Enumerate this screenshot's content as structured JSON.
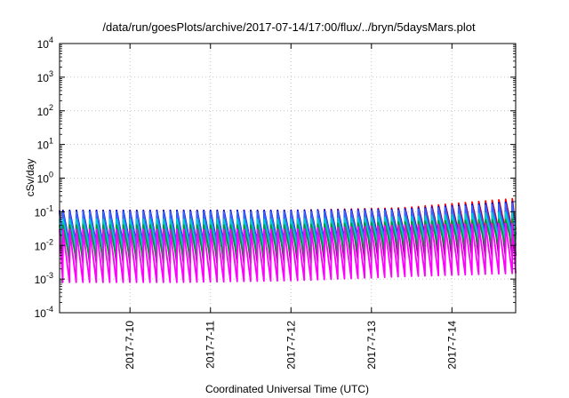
{
  "chart_data": {
    "type": "line",
    "title": "/data/run/goesPlots/archive/2017-07-14/17:00/flux/../bryn/5daysMars.plot",
    "xlabel": "Coordinated Universal Time (UTC)",
    "ylabel": "cSv/day",
    "y_scale": "log",
    "ylim": [
      0.0001,
      10000
    ],
    "y_ticks": [
      {
        "base": "10",
        "exp": "-4"
      },
      {
        "base": "10",
        "exp": "-3"
      },
      {
        "base": "10",
        "exp": "-2"
      },
      {
        "base": "10",
        "exp": "-1"
      },
      {
        "base": "10",
        "exp": "0"
      },
      {
        "base": "10",
        "exp": "1"
      },
      {
        "base": "10",
        "exp": "2"
      },
      {
        "base": "10",
        "exp": "3"
      },
      {
        "base": "10",
        "exp": "4"
      }
    ],
    "xlim": [
      "2017-07-09T03:00",
      "2017-07-14T19:00"
    ],
    "x_ticks": [
      "2017-7-10",
      "2017-7-11",
      "2017-7-12",
      "2017-7-13",
      "2017-7-14"
    ],
    "grid": true,
    "cycle_hours": 2,
    "series": [
      {
        "color": "#ff0000",
        "peak": [
          0.11,
          0.11,
          0.11,
          0.13,
          0.25
        ],
        "trough": [
          0.011,
          0.011,
          0.012,
          0.02,
          0.03
        ]
      },
      {
        "color": "#990099",
        "peak": [
          0.1,
          0.1,
          0.1,
          0.11,
          0.2
        ],
        "trough": [
          0.003,
          0.003,
          0.003,
          0.004,
          0.005
        ]
      },
      {
        "color": "#0000cc",
        "peak": [
          0.11,
          0.11,
          0.11,
          0.12,
          0.2
        ],
        "trough": [
          0.011,
          0.011,
          0.012,
          0.018,
          0.022
        ]
      },
      {
        "color": "#3366ff",
        "peak": [
          0.1,
          0.1,
          0.1,
          0.11,
          0.18
        ],
        "trough": [
          0.01,
          0.01,
          0.011,
          0.016,
          0.02
        ]
      },
      {
        "color": "#00cccc",
        "peak": [
          0.06,
          0.06,
          0.06,
          0.07,
          0.1
        ],
        "trough": [
          0.007,
          0.007,
          0.008,
          0.012,
          0.016
        ]
      },
      {
        "color": "#009933",
        "peak": [
          0.04,
          0.04,
          0.04,
          0.05,
          0.06
        ],
        "trough": [
          0.004,
          0.004,
          0.005,
          0.008,
          0.01
        ]
      },
      {
        "color": "#ff00ff",
        "peak": [
          0.03,
          0.03,
          0.03,
          0.04,
          0.045
        ],
        "trough": [
          0.0008,
          0.0008,
          0.0009,
          0.0012,
          0.0015
        ]
      }
    ]
  }
}
